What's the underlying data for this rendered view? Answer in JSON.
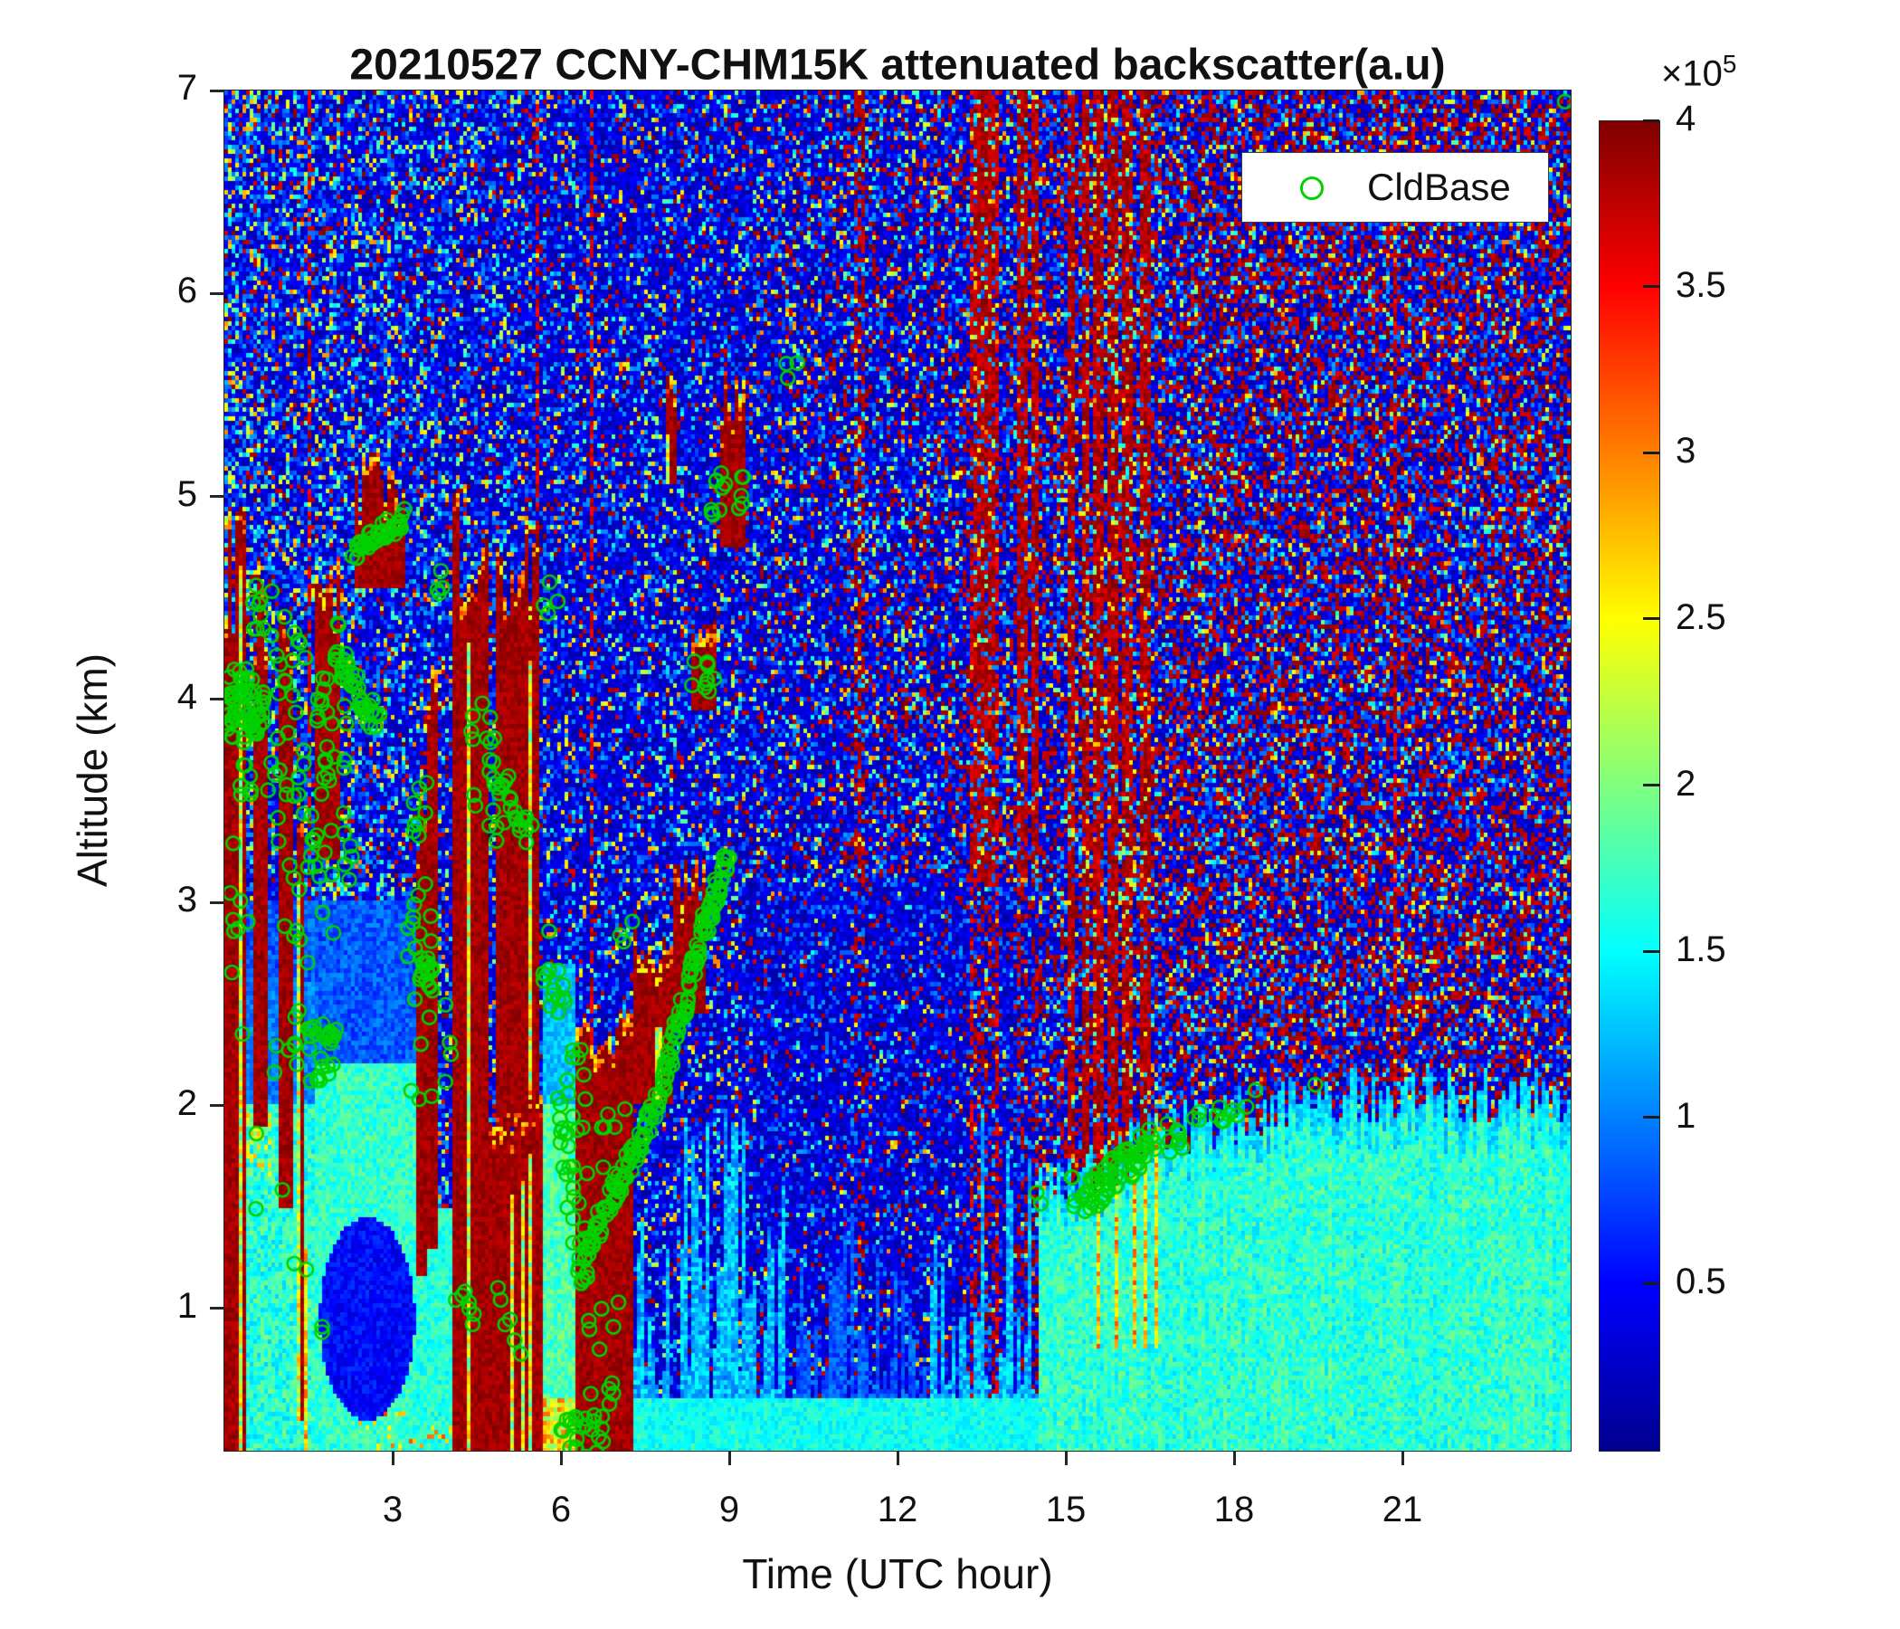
{
  "chart_data": {
    "type": "heatmap",
    "title": "20210527 CCNY-CHM15K attenuated backscatter(a.u)",
    "xlabel": "Time (UTC hour)",
    "ylabel": "Altitude (km)",
    "xlim": [
      0,
      24
    ],
    "ylim": [
      0.3,
      7
    ],
    "x_ticks": [
      3,
      6,
      9,
      12,
      15,
      18,
      21
    ],
    "y_ticks": [
      1,
      2,
      3,
      4,
      5,
      6,
      7
    ],
    "grid": false,
    "colormap": "jet",
    "colorbar": {
      "exp_base": "×10",
      "exp_power": "5",
      "ticks": [
        0.5,
        1,
        1.5,
        2,
        2.5,
        3,
        3.5,
        4
      ],
      "range": [
        0,
        4
      ],
      "position": "right"
    },
    "legend": {
      "label": "CldBase",
      "marker": "circle",
      "marker_color": "#00d200",
      "position": "top-right"
    },
    "cloud_rain_regions": [
      [
        0.0,
        0.38,
        0.3,
        4.55,
        0.7
      ],
      [
        0.5,
        0.8,
        1.9,
        4.35,
        0.6
      ],
      [
        0.95,
        1.22,
        1.5,
        4.2,
        0.6
      ],
      [
        1.26,
        1.42,
        0.45,
        3.3,
        0.4
      ],
      [
        1.62,
        2.05,
        3.2,
        4.45,
        0.5
      ],
      [
        2.3,
        3.2,
        4.55,
        5.02,
        0.35
      ],
      [
        3.42,
        3.62,
        1.15,
        3.35,
        0.45
      ],
      [
        3.63,
        3.8,
        1.3,
        4.0,
        0.5
      ],
      [
        4.06,
        4.68,
        0.3,
        4.68,
        0.6
      ],
      [
        4.68,
        5.66,
        0.3,
        1.95,
        0.25
      ],
      [
        4.85,
        5.63,
        1.9,
        4.58,
        0.6
      ],
      [
        6.28,
        7.28,
        0.3,
        2.32,
        0.3
      ],
      [
        7.3,
        8.0,
        2.0,
        2.78,
        0.25
      ],
      [
        8.0,
        8.55,
        2.45,
        3.08,
        0.25
      ],
      [
        8.35,
        8.8,
        3.95,
        4.32,
        0.2
      ],
      [
        8.82,
        9.3,
        4.75,
        5.45,
        0.35
      ],
      [
        7.9,
        8.07,
        5.05,
        5.5,
        0.2
      ]
    ],
    "red_noise_band_hours": [
      11.3,
      13.45,
      13.65,
      14.25,
      14.45,
      15.1,
      15.35,
      15.6,
      15.85,
      16.1,
      16.4
    ],
    "cldbase_clusters": [
      {
        "t": [
          0.0,
          0.7
        ],
        "z": [
          3.8,
          4.15
        ],
        "n": 55,
        "m": "s"
      },
      {
        "t": [
          0.0,
          0.85
        ],
        "z": [
          3.45,
          3.95
        ],
        "n": 16,
        "m": "s"
      },
      {
        "t": [
          0.1,
          0.5
        ],
        "z": [
          2.6,
          3.45
        ],
        "n": 8,
        "m": "s"
      },
      {
        "t": [
          0.3,
          1.2
        ],
        "z": [
          1.4,
          2.55
        ],
        "n": 6,
        "m": "s"
      },
      {
        "t": [
          1.2,
          1.75
        ],
        "z": [
          0.8,
          1.7
        ],
        "n": 4,
        "m": "s"
      },
      {
        "t": [
          0.5,
          0.9
        ],
        "z": [
          4.28,
          4.58
        ],
        "n": 10,
        "m": "s"
      },
      {
        "t": [
          0.9,
          1.45
        ],
        "z": [
          3.0,
          4.5
        ],
        "n": 30,
        "m": "s"
      },
      {
        "t": [
          0.95,
          1.5
        ],
        "z": [
          2.1,
          2.95
        ],
        "n": 12,
        "m": "s"
      },
      {
        "t": [
          1.45,
          1.95
        ],
        "z": [
          2.75,
          3.55
        ],
        "n": 14,
        "m": "s"
      },
      {
        "t": [
          1.5,
          2.0
        ],
        "z": [
          2.12,
          2.42
        ],
        "n": 24,
        "m": "s"
      },
      {
        "t": [
          1.65,
          2.2
        ],
        "z": [
          3.6,
          4.42
        ],
        "n": 26,
        "m": "s"
      },
      {
        "t": [
          2.0,
          2.75
        ],
        "z": [
          4.2,
          3.88
        ],
        "n": 36,
        "m": "t",
        "j": 0.08
      },
      {
        "t": [
          2.3,
          3.2
        ],
        "z": [
          4.72,
          4.9
        ],
        "n": 40,
        "m": "t",
        "j": 0.05
      },
      {
        "t": [
          2.1,
          2.4
        ],
        "z": [
          3.1,
          3.5
        ],
        "n": 6,
        "m": "s"
      },
      {
        "t": [
          3.25,
          3.75
        ],
        "z": [
          2.72,
          3.1
        ],
        "n": 12,
        "m": "s"
      },
      {
        "t": [
          3.3,
          3.62
        ],
        "z": [
          3.3,
          3.62
        ],
        "n": 8,
        "m": "s"
      },
      {
        "t": [
          3.45,
          3.72
        ],
        "z": [
          2.55,
          2.75
        ],
        "n": 16,
        "m": "s"
      },
      {
        "t": [
          3.3,
          4.05
        ],
        "z": [
          1.95,
          2.55
        ],
        "n": 10,
        "m": "s"
      },
      {
        "t": [
          3.74,
          3.96
        ],
        "z": [
          4.52,
          4.64
        ],
        "n": 4,
        "m": "s"
      },
      {
        "t": [
          4.1,
          4.5
        ],
        "z": [
          0.85,
          1.12
        ],
        "n": 7,
        "m": "s"
      },
      {
        "t": [
          4.85,
          5.3
        ],
        "z": [
          1.1,
          0.8
        ],
        "n": 6,
        "m": "t",
        "j": 0.06
      },
      {
        "t": [
          4.4,
          5.0
        ],
        "z": [
          3.3,
          4.0
        ],
        "n": 22,
        "m": "s"
      },
      {
        "t": [
          4.95,
          5.45
        ],
        "z": [
          3.62,
          3.32
        ],
        "n": 18,
        "m": "t",
        "j": 0.07
      },
      {
        "t": [
          5.55,
          6.05
        ],
        "z": [
          4.38,
          4.58
        ],
        "n": 4,
        "m": "s"
      },
      {
        "t": [
          5.68,
          6.45
        ],
        "z": [
          2.75,
          1.9
        ],
        "n": 26,
        "m": "t",
        "j": 0.25
      },
      {
        "t": [
          5.95,
          6.5
        ],
        "z": [
          1.95,
          1.1
        ],
        "n": 32,
        "m": "t",
        "j": 0.2
      },
      {
        "t": [
          6.0,
          6.8
        ],
        "z": [
          0.2,
          0.48
        ],
        "n": 30,
        "m": "s"
      },
      {
        "t": [
          6.5,
          7.05
        ],
        "z": [
          0.45,
          1.05
        ],
        "n": 10,
        "m": "s"
      },
      {
        "t": [
          6.6,
          7.2
        ],
        "z": [
          1.62,
          2.0
        ],
        "n": 6,
        "m": "s"
      },
      {
        "t": [
          6.45,
          9.0
        ],
        "z": [
          1.12,
          3.12
        ],
        "n": 130,
        "m": "l",
        "j": 0.07
      },
      {
        "t": [
          7.05,
          7.3
        ],
        "z": [
          2.78,
          2.94
        ],
        "n": 3,
        "m": "s"
      },
      {
        "t": [
          8.3,
          8.8
        ],
        "z": [
          4.02,
          4.2
        ],
        "n": 10,
        "m": "s"
      },
      {
        "t": [
          8.6,
          9.3
        ],
        "z": [
          4.86,
          5.12
        ],
        "n": 14,
        "m": "s"
      },
      {
        "t": [
          10.0,
          10.22
        ],
        "z": [
          5.56,
          5.72
        ],
        "n": 3,
        "m": "s"
      },
      {
        "t": [
          14.45,
          14.65
        ],
        "z": [
          1.42,
          1.58
        ],
        "n": 2,
        "m": "s"
      },
      {
        "t": [
          15.05,
          15.3
        ],
        "z": [
          1.47,
          1.66
        ],
        "n": 5,
        "m": "s"
      },
      {
        "t": [
          15.3,
          16.5
        ],
        "z": [
          1.52,
          1.82
        ],
        "n": 60,
        "m": "t",
        "j": 0.09
      },
      {
        "t": [
          16.5,
          17.1
        ],
        "z": [
          1.76,
          1.93
        ],
        "n": 10,
        "m": "s"
      },
      {
        "t": [
          17.2,
          17.45
        ],
        "z": [
          1.86,
          1.98
        ],
        "n": 3,
        "m": "s"
      },
      {
        "t": [
          17.55,
          18.1
        ],
        "z": [
          1.86,
          2.1
        ],
        "n": 8,
        "m": "s"
      },
      {
        "t": [
          18.15,
          18.4
        ],
        "z": [
          1.98,
          2.1
        ],
        "n": 2,
        "m": "s"
      },
      {
        "t": [
          19.35,
          19.55
        ],
        "z": [
          2.08,
          2.18
        ],
        "n": 1,
        "m": "s"
      },
      {
        "t": [
          23.85,
          24.0
        ],
        "z": [
          6.9,
          7.0
        ],
        "n": 1,
        "m": "s"
      }
    ]
  }
}
